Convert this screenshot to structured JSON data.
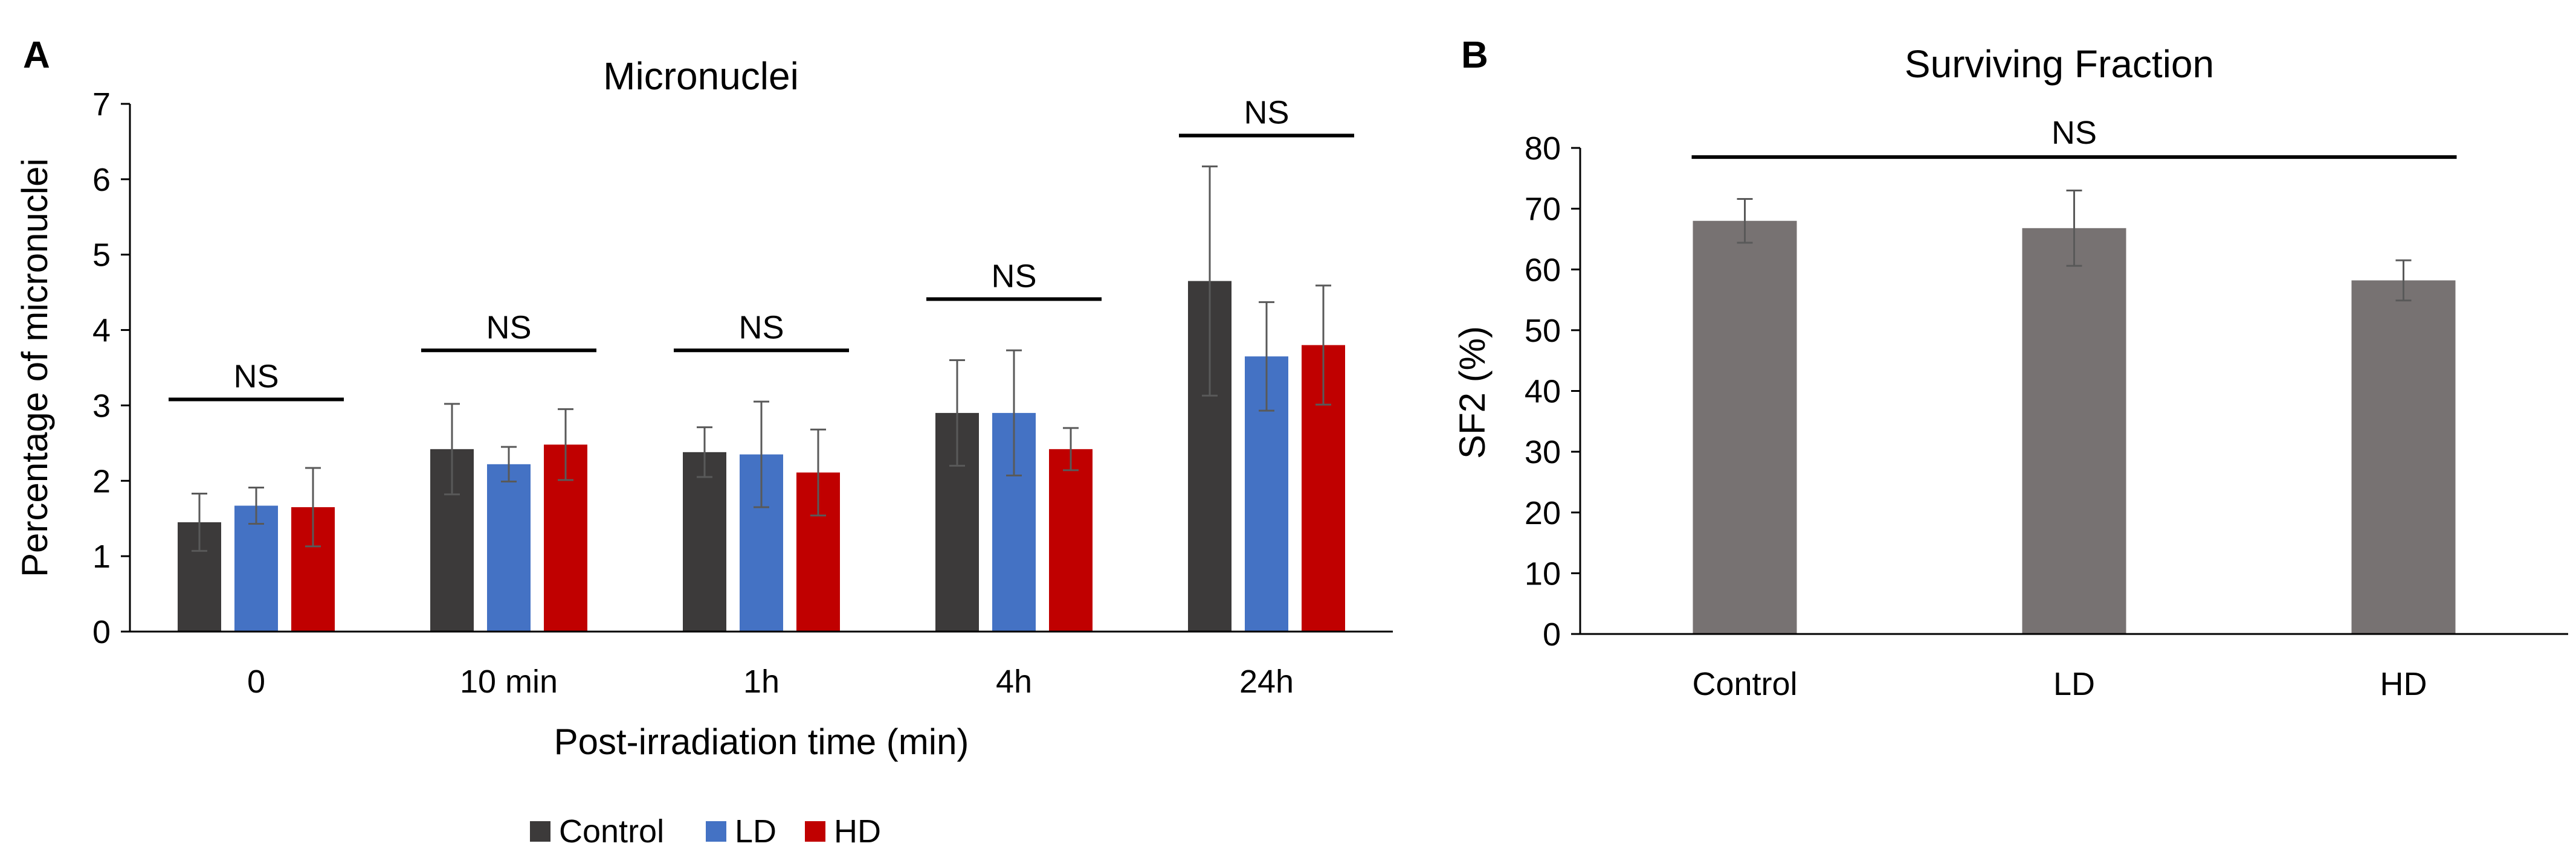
{
  "colors": {
    "control": "#3c3a3a",
    "ld": "#4472c4",
    "hd": "#c00000",
    "sf_bar": "#777272",
    "error_bar": "#595959",
    "axis": "#000000"
  },
  "chart_data": [
    {
      "panel": "A",
      "type": "bar",
      "title": "Micronuclei",
      "xlabel": "Post-irradiation time (min)",
      "ylabel": "Percentage of micronuclei",
      "ylim": [
        0,
        7
      ],
      "yticks": [
        "0",
        "1",
        "2",
        "3",
        "4",
        "5",
        "6",
        "7"
      ],
      "categories": [
        "0",
        "10 min",
        "1h",
        "4h",
        "24h"
      ],
      "series": [
        {
          "name": "Control",
          "color_key": "control",
          "values": [
            1.45,
            2.42,
            2.38,
            2.9,
            4.65
          ],
          "errors": [
            0.38,
            0.6,
            0.33,
            0.7,
            1.52
          ]
        },
        {
          "name": "LD",
          "color_key": "ld",
          "values": [
            1.67,
            2.22,
            2.35,
            2.9,
            3.65
          ],
          "errors": [
            0.24,
            0.23,
            0.7,
            0.83,
            0.72
          ]
        },
        {
          "name": "HD",
          "color_key": "hd",
          "values": [
            1.65,
            2.48,
            2.11,
            2.42,
            3.8
          ],
          "errors": [
            0.52,
            0.47,
            0.57,
            0.28,
            0.79
          ]
        }
      ],
      "significance": [
        {
          "category": "0",
          "label": "NS",
          "level": 3.08
        },
        {
          "category": "10 min",
          "label": "NS",
          "level": 3.73
        },
        {
          "category": "1h",
          "label": "NS",
          "level": 3.73
        },
        {
          "category": "4h",
          "label": "NS",
          "level": 4.41
        },
        {
          "category": "24h",
          "label": "NS",
          "level": 6.58
        }
      ],
      "legend": {
        "position": "bottom",
        "entries": [
          "Control",
          "LD",
          "HD"
        ]
      }
    },
    {
      "panel": "B",
      "type": "bar",
      "title": "Surviving Fraction",
      "xlabel": "",
      "ylabel": "SF2 (%)",
      "ylim": [
        0,
        80
      ],
      "yticks": [
        "0",
        "10",
        "20",
        "30",
        "40",
        "50",
        "60",
        "70",
        "80"
      ],
      "categories": [
        "Control",
        "LD",
        "HD"
      ],
      "values": [
        68,
        66.8,
        58.2
      ],
      "errors": [
        3.6,
        6.2,
        3.3
      ],
      "significance": [
        {
          "span": [
            "Control",
            "HD"
          ],
          "label": "NS",
          "level": 78.5
        }
      ]
    }
  ]
}
